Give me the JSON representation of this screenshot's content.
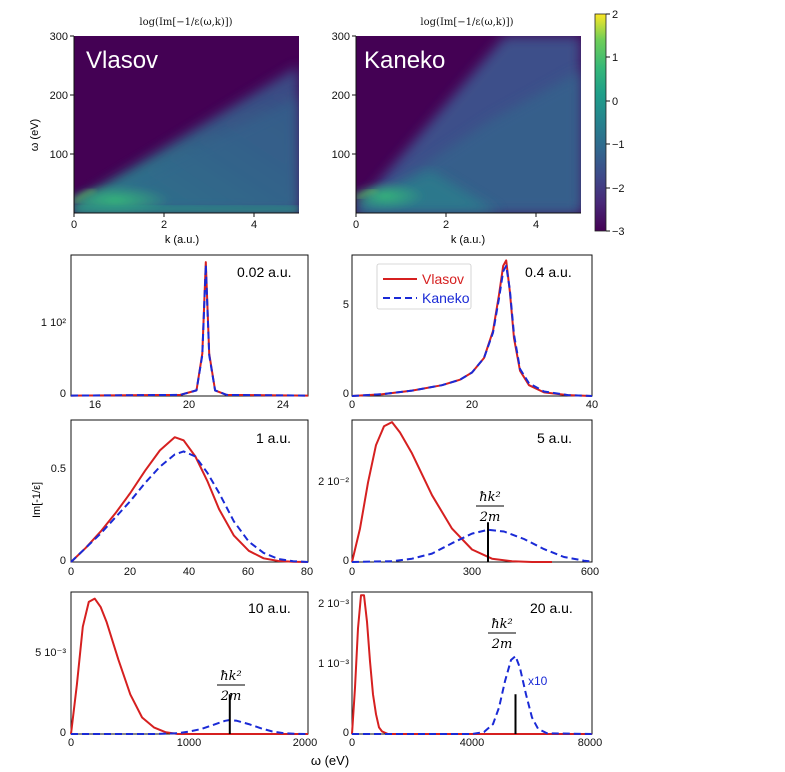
{
  "figure": {
    "xlabel_bottom": "ω (eV)",
    "ylabel_left": "Im[-1/ε]",
    "hk_label": "ħk²/2m",
    "hk_numerator": "ħk²",
    "hk_denominator": "2m"
  },
  "colors": {
    "vlasov": "#d62020",
    "kaneko": "#1a2ad6"
  },
  "colorbar": {
    "min": -3,
    "max": 2,
    "ticks": [
      "2",
      "1",
      "0",
      "−1",
      "−2",
      "−3"
    ]
  },
  "chart_data": [
    {
      "type": "heatmap",
      "id": "vlasov_map",
      "title": "log(Im[−1/ε(ω,k)])",
      "label": "Vlasov",
      "xlabel": "k (a.u.)",
      "ylabel": "ω (eV)",
      "xlim": [
        0,
        5
      ],
      "ylim": [
        0,
        300
      ],
      "xticks": [
        "0",
        "2",
        "4"
      ],
      "yticks": [
        "100",
        "200",
        "300"
      ]
    },
    {
      "type": "heatmap",
      "id": "kaneko_map",
      "title": "log(Im[−1/ε(ω,k)])",
      "label": "Kaneko",
      "xlabel": "k (a.u.)",
      "ylabel": "",
      "xlim": [
        0,
        5
      ],
      "ylim": [
        0,
        300
      ],
      "xticks": [
        "0",
        "2",
        "4"
      ],
      "yticks": [
        "100",
        "200",
        "300"
      ]
    },
    {
      "type": "line",
      "id": "k002",
      "label": "0.02 a.u.",
      "xlim": [
        14.8,
        25
      ],
      "ylim": [
        0,
        200
      ],
      "xticks": [
        "16",
        "20",
        "24"
      ],
      "yticks": [
        "0",
        "1 10²"
      ],
      "series": [
        {
          "name": "Vlasov",
          "x": [
            14.8,
            19.5,
            20.2,
            20.45,
            20.6,
            20.75,
            21.0,
            21.5,
            25
          ],
          "y": [
            0.5,
            1.5,
            8,
            60,
            190,
            60,
            8,
            1.5,
            0.5
          ]
        },
        {
          "name": "Kaneko",
          "x": [
            14.8,
            19.5,
            20.2,
            20.45,
            20.6,
            20.75,
            21.0,
            21.5,
            25
          ],
          "y": [
            0.5,
            1.5,
            8,
            58,
            186,
            58,
            8,
            1.5,
            0.5
          ]
        }
      ]
    },
    {
      "type": "line",
      "id": "k04",
      "label": "0.4 a.u.",
      "legend": [
        "Vlasov",
        "Kaneko"
      ],
      "xlim": [
        0,
        40
      ],
      "ylim": [
        0,
        7.8
      ],
      "xticks": [
        "0",
        "20",
        "40"
      ],
      "yticks": [
        "0",
        "5"
      ],
      "series": [
        {
          "name": "Vlasov",
          "x": [
            0,
            5,
            10,
            15,
            18,
            20,
            22,
            23.5,
            24.5,
            25.2,
            25.7,
            26.3,
            27,
            28,
            29.5,
            32,
            36,
            40
          ],
          "y": [
            0,
            0.1,
            0.3,
            0.6,
            0.9,
            1.3,
            2.1,
            3.6,
            5.6,
            7.2,
            7.5,
            5.8,
            3.2,
            1.4,
            0.6,
            0.2,
            0.05,
            0
          ]
        },
        {
          "name": "Kaneko",
          "x": [
            0,
            5,
            10,
            15,
            18,
            20,
            22,
            23.5,
            24.5,
            25.2,
            25.7,
            26.3,
            27,
            28,
            29.5,
            32,
            36,
            40
          ],
          "y": [
            0,
            0.1,
            0.3,
            0.6,
            0.9,
            1.3,
            2.1,
            3.5,
            5.4,
            6.9,
            7.2,
            5.9,
            3.4,
            1.5,
            0.7,
            0.25,
            0.05,
            0
          ]
        }
      ]
    },
    {
      "type": "line",
      "id": "k1",
      "label": "1 a.u.",
      "xlim": [
        0,
        80
      ],
      "ylim": [
        0,
        0.7
      ],
      "xticks": [
        "0",
        "20",
        "40",
        "60",
        "80"
      ],
      "yticks": [
        "0",
        "0.5"
      ],
      "series": [
        {
          "name": "Vlasov",
          "x": [
            0,
            5,
            10,
            15,
            20,
            25,
            30,
            35,
            38,
            42,
            46,
            50,
            55,
            60,
            65,
            70,
            75,
            80
          ],
          "y": [
            0,
            0.07,
            0.15,
            0.24,
            0.34,
            0.45,
            0.55,
            0.615,
            0.6,
            0.52,
            0.4,
            0.26,
            0.13,
            0.055,
            0.018,
            0.005,
            0.001,
            0
          ]
        },
        {
          "name": "Kaneko",
          "x": [
            0,
            5,
            10,
            15,
            20,
            25,
            30,
            35,
            38,
            42,
            46,
            50,
            55,
            60,
            65,
            70,
            75,
            80
          ],
          "y": [
            0,
            0.07,
            0.14,
            0.22,
            0.3,
            0.39,
            0.47,
            0.53,
            0.545,
            0.52,
            0.44,
            0.34,
            0.2,
            0.1,
            0.045,
            0.015,
            0.004,
            0
          ]
        }
      ]
    },
    {
      "type": "line",
      "id": "k5",
      "label": "5 a.u.",
      "marker": {
        "x": 340,
        "label": "ħk²/2m"
      },
      "xlim": [
        0,
        600
      ],
      "ylim": [
        0,
        0.034
      ],
      "xticks": [
        "0",
        "300",
        "600"
      ],
      "yticks": [
        "0",
        "2 10⁻²"
      ],
      "series": [
        {
          "name": "Vlasov",
          "x": [
            0,
            20,
            40,
            60,
            80,
            100,
            120,
            150,
            200,
            250,
            300,
            350,
            400,
            450,
            500
          ],
          "y": [
            0,
            0.008,
            0.019,
            0.028,
            0.0325,
            0.0335,
            0.031,
            0.026,
            0.016,
            0.008,
            0.003,
            0.0008,
            0.0002,
            0,
            0
          ]
        },
        {
          "name": "Kaneko",
          "x": [
            0,
            100,
            150,
            200,
            250,
            300,
            340,
            380,
            430,
            480,
            530,
            580,
            600
          ],
          "y": [
            0,
            0.0002,
            0.0008,
            0.002,
            0.0045,
            0.0068,
            0.0077,
            0.0073,
            0.0055,
            0.0031,
            0.0012,
            0.0003,
            0.0001
          ]
        }
      ]
    },
    {
      "type": "line",
      "id": "k10",
      "label": "10 a.u.",
      "marker": {
        "x": 1340,
        "label": "ħk²/2m"
      },
      "xlim": [
        0,
        2000
      ],
      "ylim": [
        0,
        0.0086
      ],
      "xticks": [
        "0",
        "1000",
        "2000"
      ],
      "yticks": [
        "0",
        "5 10⁻³"
      ],
      "series": [
        {
          "name": "Vlasov",
          "x": [
            0,
            50,
            100,
            150,
            200,
            250,
            300,
            400,
            500,
            600,
            700,
            800,
            900,
            1000,
            2000
          ],
          "y": [
            0,
            0.003,
            0.0065,
            0.008,
            0.0082,
            0.0077,
            0.0068,
            0.0045,
            0.0024,
            0.001,
            0.0004,
            0.0001,
            0,
            0,
            0
          ]
        },
        {
          "name": "Kaneko",
          "x": [
            0,
            700,
            900,
            1000,
            1100,
            1200,
            1300,
            1340,
            1400,
            1500,
            1600,
            1700,
            1800,
            1900,
            2000
          ],
          "y": [
            0,
            0,
            5e-05,
            0.00015,
            0.0003,
            0.00055,
            0.0008,
            0.00085,
            0.0008,
            0.0006,
            0.00035,
            0.00015,
            5e-05,
            1e-05,
            0
          ]
        }
      ]
    },
    {
      "type": "line",
      "id": "k20",
      "label": "20 a.u.",
      "marker": {
        "x": 5450,
        "label": "ħk²/2m"
      },
      "annotation": "x10",
      "xlim": [
        0,
        8000
      ],
      "ylim": [
        0,
        0.00215
      ],
      "xticks": [
        "0",
        "4000",
        "8000"
      ],
      "yticks": [
        "0",
        "1 10⁻³",
        "2 10⁻³"
      ],
      "series": [
        {
          "name": "Vlasov",
          "x": [
            0,
            100,
            200,
            300,
            400,
            500,
            600,
            700,
            800,
            900,
            1000,
            1200,
            8000
          ],
          "y": [
            0,
            0.0007,
            0.0016,
            0.0021,
            0.0021,
            0.0017,
            0.0011,
            0.0006,
            0.0003,
            0.0001,
            4e-05,
            0,
            0
          ]
        },
        {
          "name": "Kaneko",
          "x": [
            0,
            4000,
            4400,
            4700,
            4900,
            5100,
            5300,
            5450,
            5600,
            5800,
            6000,
            6200,
            6500,
            8000
          ],
          "y": [
            0,
            0,
            3e-05,
            0.00015,
            0.0004,
            0.0008,
            0.00112,
            0.00118,
            0.001,
            0.0006,
            0.00025,
            8e-05,
            1e-05,
            0
          ]
        }
      ]
    }
  ]
}
